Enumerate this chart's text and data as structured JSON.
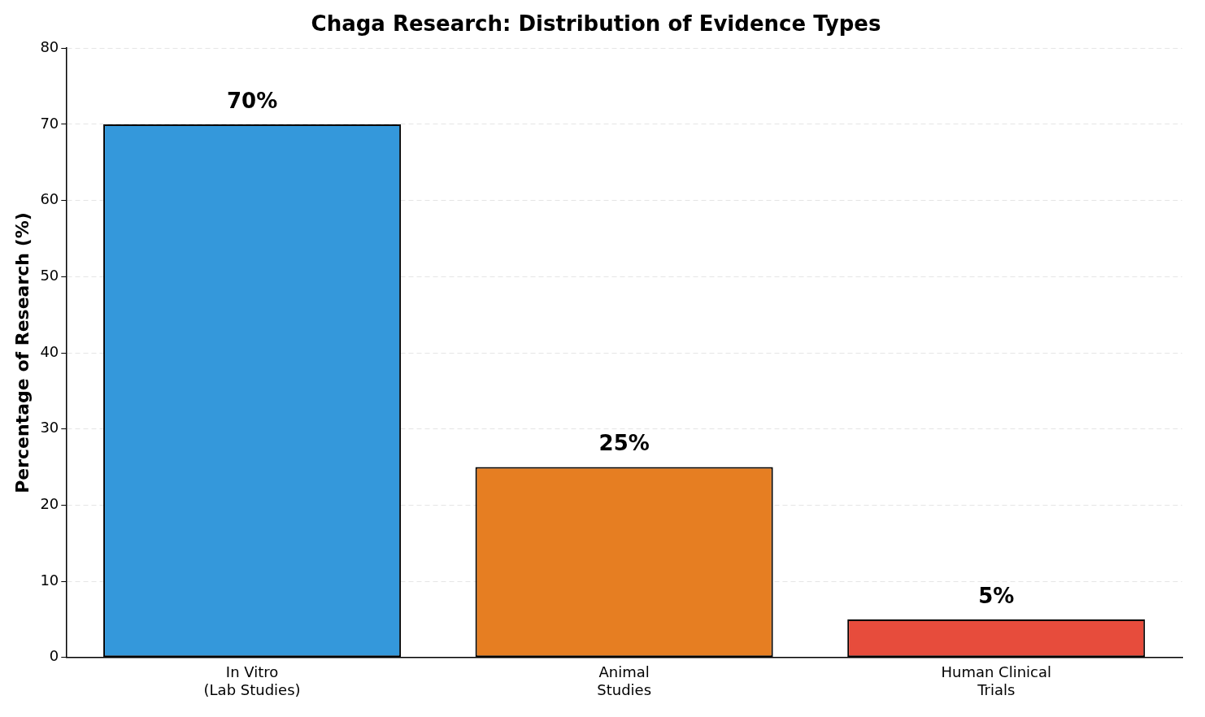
{
  "chart_data": {
    "type": "bar",
    "title": "Chaga Research: Distribution of Evidence Types",
    "ylabel": "Percentage of Research (%)",
    "categories": [
      "In Vitro\n(Lab Studies)",
      "Animal\nStudies",
      "Human Clinical\nTrials"
    ],
    "values": [
      70,
      25,
      5
    ],
    "colors": [
      "#3498db",
      "#e67e22",
      "#e74c3c"
    ],
    "value_labels": [
      "70%",
      "25%",
      "5%"
    ],
    "ylim": [
      0,
      80
    ],
    "yticks": [
      0,
      10,
      20,
      30,
      40,
      50,
      60,
      70,
      80
    ],
    "grid": "y",
    "legend": false
  }
}
